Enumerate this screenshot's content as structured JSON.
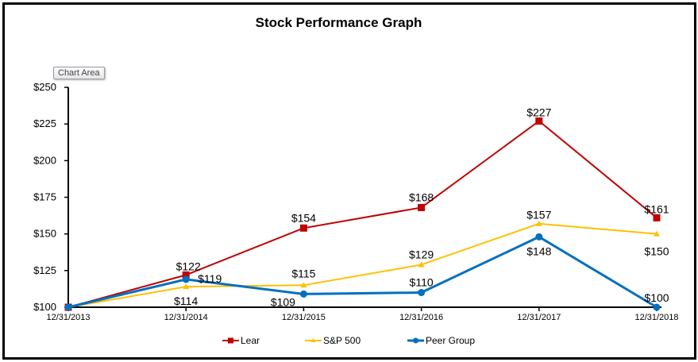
{
  "chart_data": {
    "type": "line",
    "title": "Stock Performance Graph",
    "xlabel": "",
    "ylabel": "",
    "categories": [
      "12/31/2013",
      "12/31/2014",
      "12/31/2015",
      "12/31/2016",
      "12/31/2017",
      "12/31/2018"
    ],
    "ylim": [
      100,
      250
    ],
    "yticks": [
      100,
      125,
      150,
      175,
      200,
      225,
      250
    ],
    "ytick_labels": [
      "$100",
      "$125",
      "$150",
      "$175",
      "$200",
      "$225",
      "$250"
    ],
    "grid": false,
    "legend_position": "bottom",
    "series": [
      {
        "name": "Lear",
        "color": "#C00000",
        "marker": "square",
        "values": [
          100,
          122,
          154,
          168,
          227,
          161
        ],
        "labels": [
          "",
          "$122",
          "$154",
          "$168",
          "$227",
          "$161"
        ]
      },
      {
        "name": "S&P 500",
        "color": "#FFC000",
        "marker": "triangle",
        "values": [
          100,
          114,
          115,
          129,
          157,
          150
        ],
        "labels": [
          "",
          "$114",
          "$115",
          "$129",
          "$157",
          "$150"
        ]
      },
      {
        "name": "Peer Group",
        "color": "#0070C0",
        "marker": "circle",
        "values": [
          100,
          119,
          109,
          110,
          148,
          100
        ],
        "labels": [
          "",
          "$119",
          "$109",
          "$110",
          "$148",
          "$100"
        ]
      }
    ]
  },
  "tooltip": "Chart Area"
}
